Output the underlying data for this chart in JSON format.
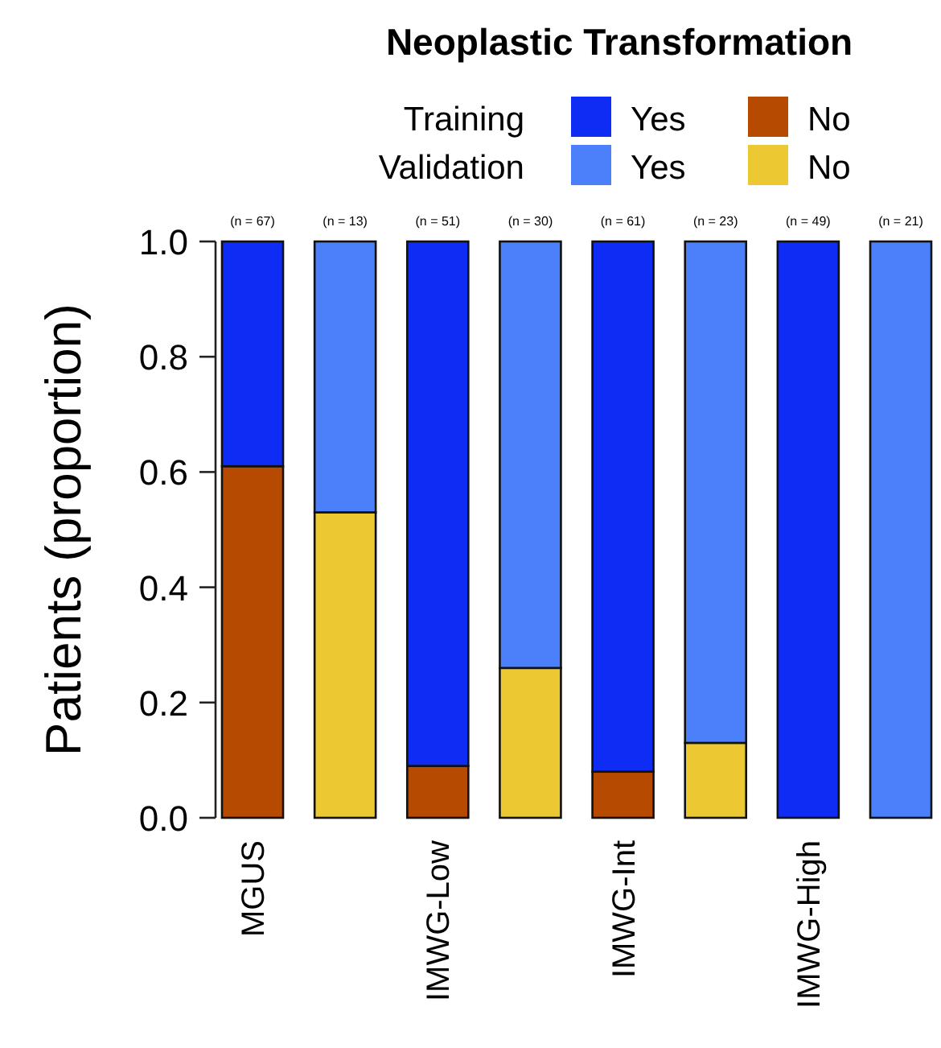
{
  "chart_data": {
    "type": "bar",
    "title": "Neoplastic Transformation",
    "ylabel": "Patients (proportion)",
    "categories": [
      "MGUS",
      null,
      "IMWG-Low",
      null,
      "IMWG-Int",
      null,
      "IMWG-High",
      null
    ],
    "stacked": true,
    "series": [
      {
        "name": "No",
        "color": "#b54a00",
        "values": [
          0.61,
          null,
          0.09,
          null,
          0.08,
          null,
          0,
          null
        ]
      },
      {
        "name": "Yes",
        "color": "#0f2cf5",
        "values": [
          0.39,
          null,
          0.91,
          null,
          0.92,
          null,
          1,
          null
        ]
      },
      {
        "name": "No",
        "color": "#ecc832",
        "values": [
          null,
          0.53,
          null,
          0.26,
          null,
          0.13,
          null,
          0
        ]
      },
      {
        "name": "Yes",
        "color": "#4b80fa",
        "values": [
          null,
          0.47,
          null,
          0.74,
          null,
          0.87,
          null,
          1
        ]
      }
    ],
    "ylim": [
      0,
      1
    ],
    "yticks": [
      {
        "value": 0,
        "label": "0.0"
      },
      {
        "value": 0.2,
        "label": "0.2"
      },
      {
        "value": 0.4,
        "label": "0.4"
      },
      {
        "value": 0.6,
        "label": "0.6"
      },
      {
        "value": 0.8,
        "label": "0.8"
      },
      {
        "value": 1,
        "label": "1.0"
      }
    ],
    "legend": "top right",
    "annotations": [
      "Training",
      "Validation",
      "(n = 67)",
      "(n = 13)",
      "(n = 51)",
      "(n = 30)",
      "(n = 61)",
      "(n = 23)",
      "(n = 49)",
      "(n = 21)"
    ]
  }
}
